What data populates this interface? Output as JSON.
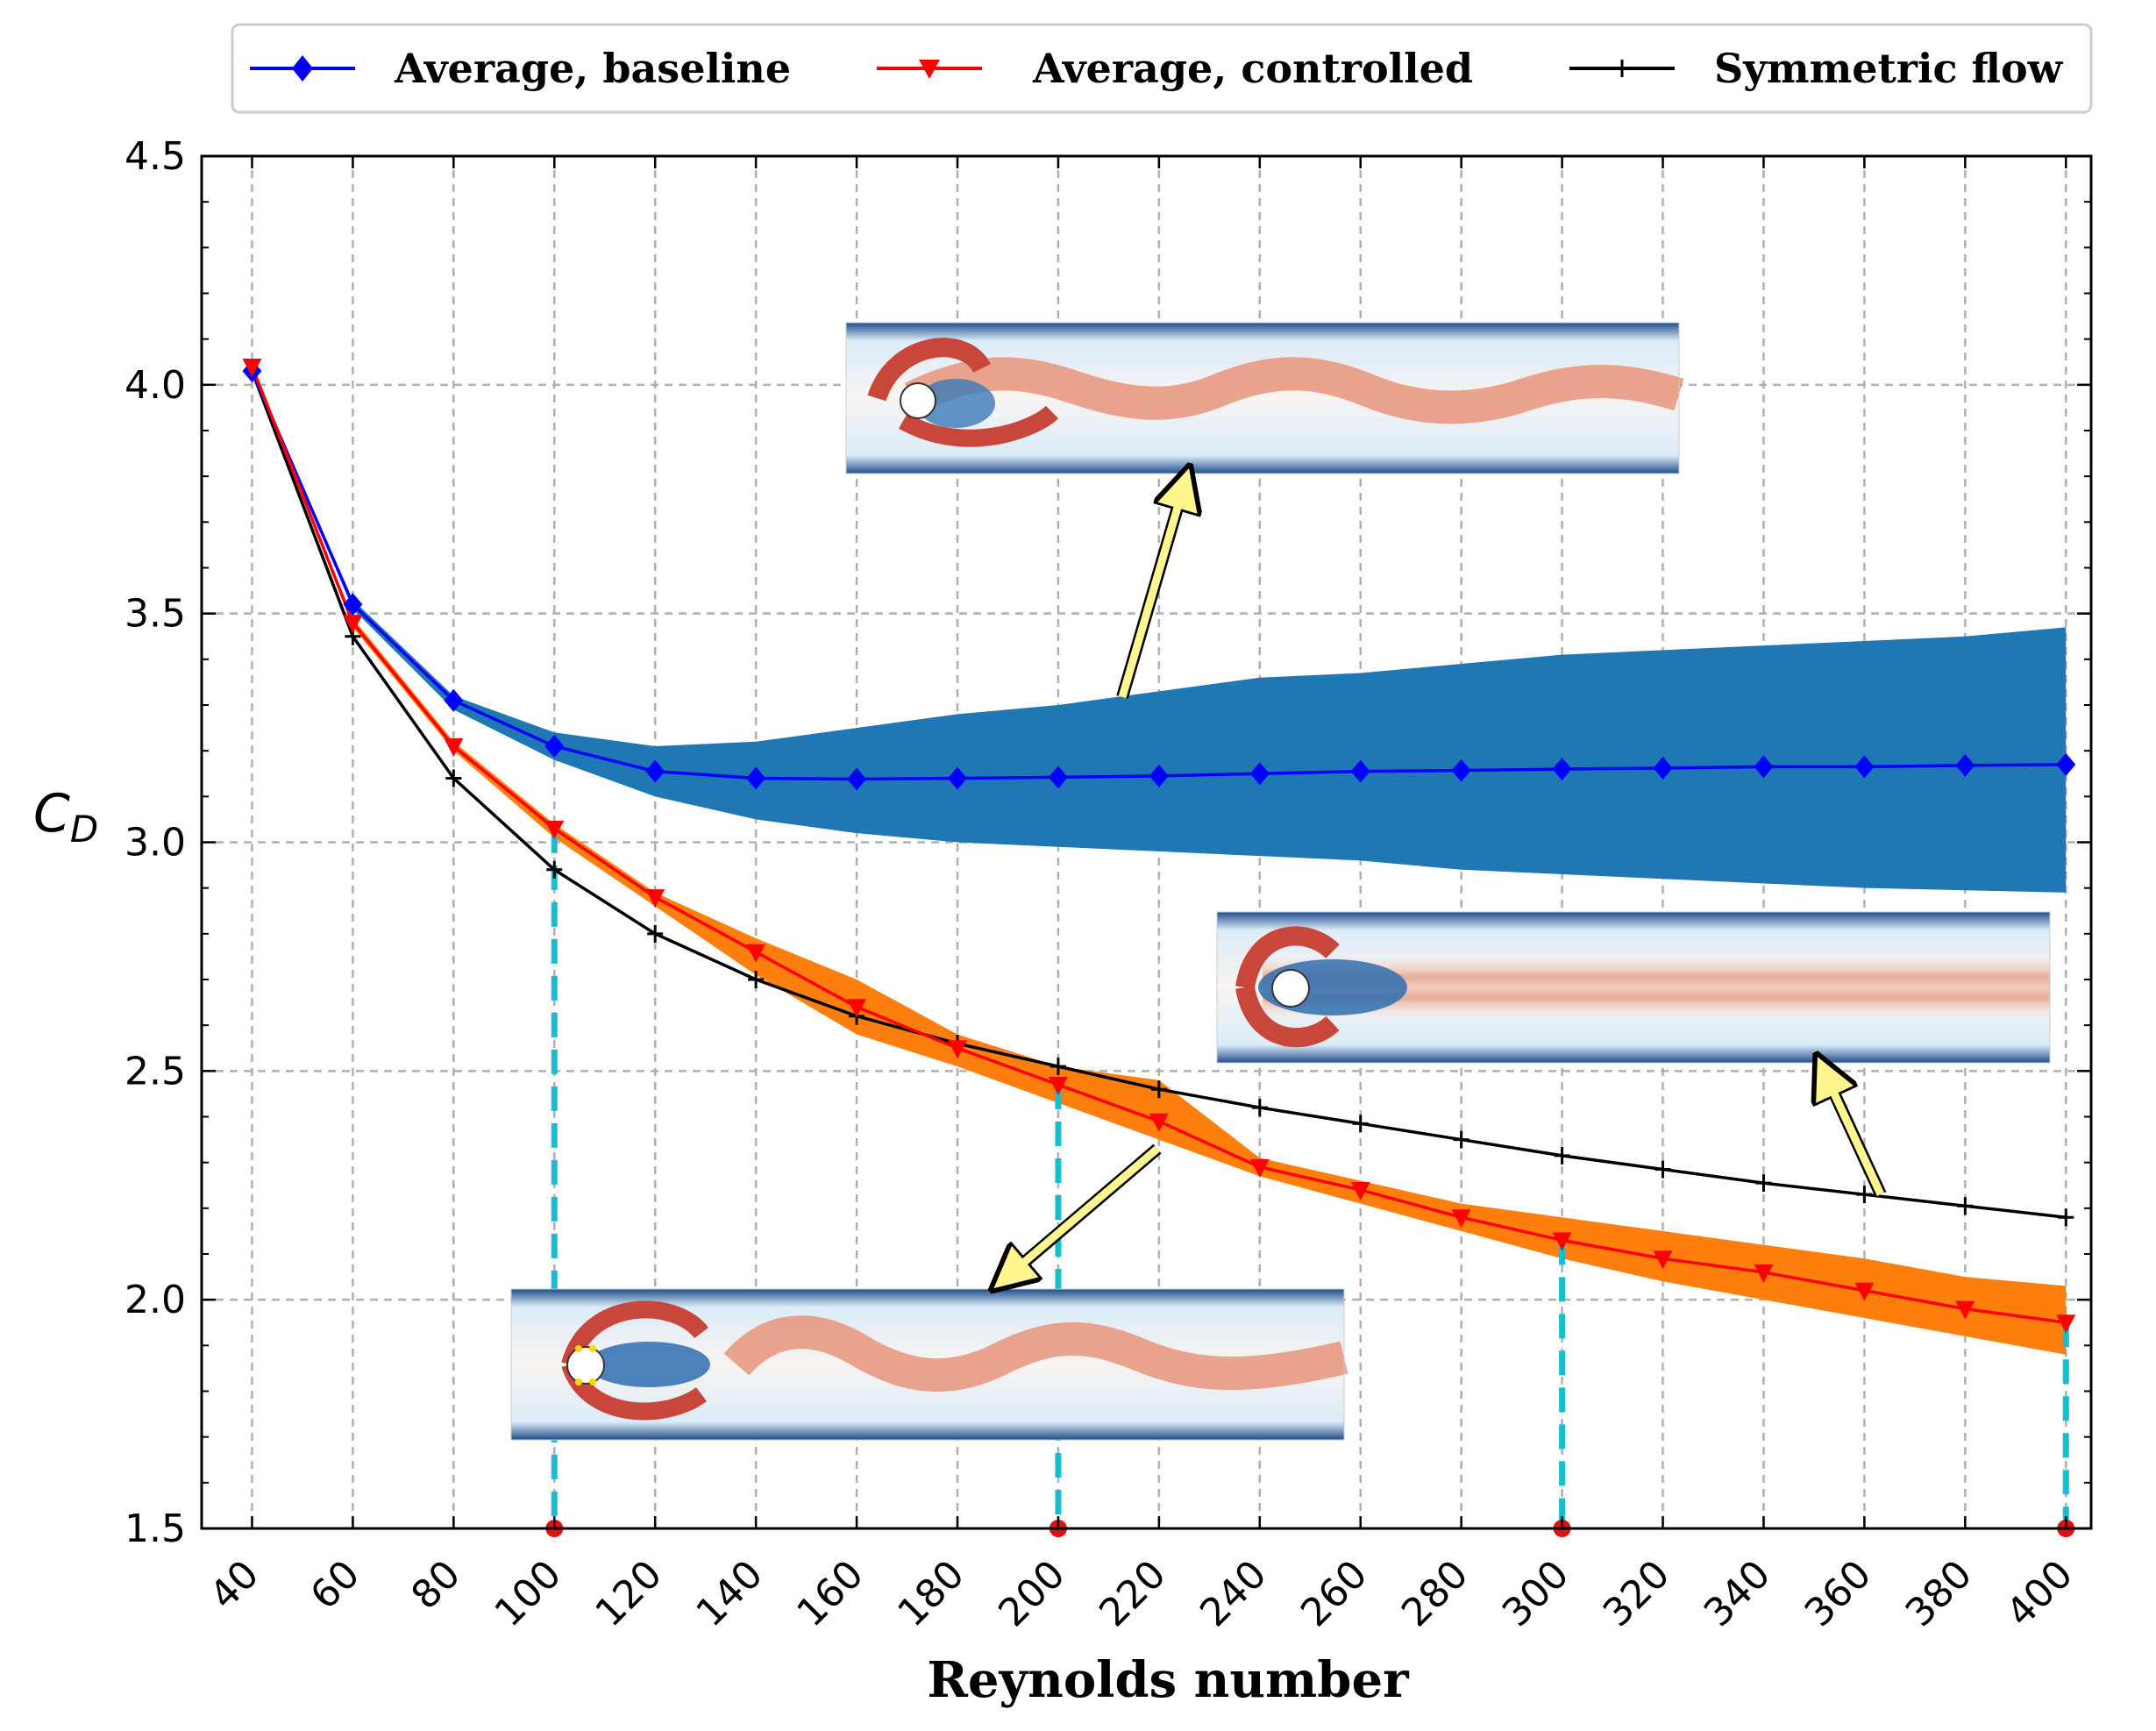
{
  "chart_data": {
    "type": "line",
    "xlabel": "Reynolds number",
    "ylabel_main": "C",
    "ylabel_sub": "D",
    "x": [
      40,
      60,
      80,
      100,
      120,
      140,
      160,
      180,
      200,
      220,
      240,
      260,
      280,
      300,
      320,
      340,
      360,
      380,
      400
    ],
    "xticks": [
      "40",
      "60",
      "80",
      "100",
      "120",
      "140",
      "160",
      "180",
      "200",
      "220",
      "240",
      "260",
      "280",
      "300",
      "320",
      "340",
      "360",
      "380",
      "400"
    ],
    "yticks": [
      "1.5",
      "2.0",
      "2.5",
      "3.0",
      "3.5",
      "4.0",
      "4.5"
    ],
    "ylim": [
      1.5,
      4.5
    ],
    "xlim": [
      30,
      405
    ],
    "grid": true,
    "legend_position": "top",
    "series": [
      {
        "name": "Average, baseline",
        "color": "#0000ff",
        "marker": "diamond",
        "values": [
          4.03,
          3.52,
          3.31,
          3.21,
          3.155,
          3.14,
          3.138,
          3.14,
          3.142,
          3.145,
          3.15,
          3.155,
          3.157,
          3.16,
          3.162,
          3.165,
          3.165,
          3.168,
          3.17
        ]
      },
      {
        "name": "Average, controlled",
        "color": "#ff0000",
        "marker": "triangle-down",
        "values": [
          4.04,
          3.48,
          3.21,
          3.03,
          2.88,
          2.76,
          2.64,
          2.55,
          2.47,
          2.39,
          2.29,
          2.24,
          2.18,
          2.13,
          2.09,
          2.06,
          2.02,
          1.98,
          1.95
        ]
      },
      {
        "name": "Symmetric flow",
        "color": "#000000",
        "marker": "plus",
        "values": [
          4.03,
          3.45,
          3.14,
          2.94,
          2.8,
          2.7,
          2.62,
          2.56,
          2.51,
          2.46,
          2.42,
          2.385,
          2.35,
          2.315,
          2.285,
          2.255,
          2.23,
          2.205,
          2.18
        ]
      }
    ],
    "bands": [
      {
        "name": "baseline oscillation range",
        "color": "#1f77b4",
        "upper": [
          4.03,
          3.53,
          3.32,
          3.24,
          3.21,
          3.22,
          3.25,
          3.28,
          3.3,
          3.33,
          3.36,
          3.37,
          3.39,
          3.41,
          3.42,
          3.43,
          3.44,
          3.45,
          3.47
        ],
        "lower": [
          4.03,
          3.51,
          3.29,
          3.18,
          3.1,
          3.05,
          3.02,
          3.0,
          2.99,
          2.98,
          2.97,
          2.96,
          2.94,
          2.93,
          2.92,
          2.91,
          2.9,
          2.895,
          2.89
        ]
      },
      {
        "name": "controlled oscillation range",
        "color": "#ff7f0e",
        "upper": [
          4.04,
          3.49,
          3.22,
          3.04,
          2.89,
          2.79,
          2.7,
          2.58,
          2.51,
          2.48,
          2.31,
          2.26,
          2.21,
          2.18,
          2.15,
          2.12,
          2.09,
          2.05,
          2.03
        ],
        "lower": [
          4.04,
          3.47,
          3.2,
          3.01,
          2.86,
          2.71,
          2.58,
          2.51,
          2.43,
          2.35,
          2.27,
          2.21,
          2.15,
          2.09,
          2.04,
          2.0,
          1.96,
          1.92,
          1.88
        ]
      }
    ],
    "highlighted_x": [
      100,
      200,
      300,
      400
    ],
    "highlight_color": "#17becf",
    "insets": [
      {
        "name": "baseline vorticity wake at Re 200",
        "points_to_x": 210
      },
      {
        "name": "symmetric flow field",
        "points_to_x": 350
      },
      {
        "name": "controlled vorticity wake",
        "points_to_x": 215
      }
    ]
  }
}
